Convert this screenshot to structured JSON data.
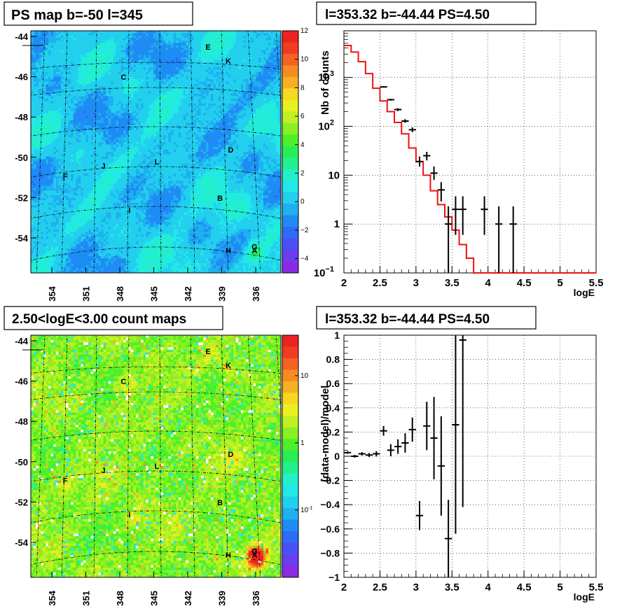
{
  "chart_data": [
    {
      "type": "heatmap",
      "title": "PS map b=-50 l=345",
      "y_ticks": [
        "-44",
        "-46",
        "-48",
        "-50",
        "-52",
        "-54"
      ],
      "x_ticks": [
        "354",
        "351",
        "348",
        "345",
        "342",
        "339",
        "336"
      ],
      "colorbar_ticks": [
        "12",
        "10",
        "8",
        "6",
        "4",
        "2",
        "0",
        "−2",
        "−4"
      ],
      "colorbar_range": [
        -5,
        12
      ],
      "sources": [
        {
          "name": "E",
          "l": 341.2,
          "b": -44.6
        },
        {
          "name": "K",
          "l": 339.5,
          "b": -45.3
        },
        {
          "name": "C",
          "l": 348.3,
          "b": -46.1
        },
        {
          "name": "D",
          "l": 339.3,
          "b": -49.7
        },
        {
          "name": "J",
          "l": 350.0,
          "b": -50.5
        },
        {
          "name": "L",
          "l": 345.5,
          "b": -50.3
        },
        {
          "name": "F",
          "l": 353.2,
          "b": -51.0
        },
        {
          "name": "B",
          "l": 340.2,
          "b": -52.1
        },
        {
          "name": "I",
          "l": 347.8,
          "b": -52.7
        },
        {
          "name": "G",
          "l": 337.3,
          "b": -54.5
        },
        {
          "name": "H",
          "l": 339.5,
          "b": -54.7
        },
        {
          "name": "A",
          "l": 337.3,
          "b": -54.7
        }
      ]
    },
    {
      "type": "line",
      "title": "l=353.32 b=-44.44 PS=4.50",
      "xlabel": "logE",
      "ylabel": "Nb of counts",
      "xlim": [
        2,
        5.5
      ],
      "ylim": [
        0.1,
        9000
      ],
      "yscale": "log",
      "grid": true,
      "x_ticks": [
        "2",
        "2.5",
        "3",
        "3.5",
        "4",
        "4.5",
        "5",
        "5.5"
      ],
      "y_ticks": [
        {
          "v": 0.1,
          "base": "10",
          "exp": "−1"
        },
        {
          "v": 1,
          "text": "1"
        },
        {
          "v": 10,
          "text": "10"
        },
        {
          "v": 100,
          "base": "10",
          "exp": "2"
        },
        {
          "v": 1000,
          "base": "10",
          "exp": "3"
        }
      ],
      "model": [
        4500,
        3300,
        2100,
        1200,
        600,
        330,
        200,
        120,
        70,
        36,
        19,
        10,
        4.8,
        2.5,
        1.4,
        0.75,
        0.38,
        0.2,
        0.1,
        0.05,
        0.03,
        0.02,
        0.01,
        0.01,
        0.01,
        0.01,
        0.01,
        0.01,
        0.01,
        0.01,
        0.01,
        0.01,
        0.01,
        0.01,
        0.01
      ],
      "data_points": [
        {
          "x": 2.55,
          "y": 640,
          "lo": 620,
          "hi": 660
        },
        {
          "x": 2.65,
          "y": 350,
          "lo": 335,
          "hi": 365
        },
        {
          "x": 2.75,
          "y": 220,
          "lo": 205,
          "hi": 235
        },
        {
          "x": 2.85,
          "y": 128,
          "lo": 118,
          "hi": 140
        },
        {
          "x": 2.95,
          "y": 85,
          "lo": 76,
          "hi": 95
        },
        {
          "x": 3.05,
          "y": 19,
          "lo": 15,
          "hi": 24
        },
        {
          "x": 3.15,
          "y": 25,
          "lo": 20,
          "hi": 30
        },
        {
          "x": 3.25,
          "y": 11,
          "lo": 8,
          "hi": 15
        },
        {
          "x": 3.35,
          "y": 5,
          "lo": 2.9,
          "hi": 7.2
        },
        {
          "x": 3.45,
          "y": 1,
          "lo": 0.1,
          "hi": 2.3
        },
        {
          "x": 3.55,
          "y": 2,
          "lo": 0.6,
          "hi": 3.7
        },
        {
          "x": 3.65,
          "y": 2,
          "lo": 0.6,
          "hi": 3.7
        },
        {
          "x": 3.95,
          "y": 2,
          "lo": 0.6,
          "hi": 3.7
        },
        {
          "x": 4.15,
          "y": 1,
          "lo": 0.1,
          "hi": 2.3
        },
        {
          "x": 4.35,
          "y": 1,
          "lo": 0.1,
          "hi": 2.3
        }
      ]
    },
    {
      "type": "heatmap",
      "title": "2.50<logE<3.00 count maps",
      "y_ticks": [
        "-44",
        "-46",
        "-48",
        "-50",
        "-52",
        "-54"
      ],
      "x_ticks": [
        "354",
        "351",
        "348",
        "345",
        "342",
        "339",
        "336"
      ],
      "colorbar_ticks": [
        {
          "text": "10",
          "v": 10
        },
        {
          "text": "1",
          "v": 1
        },
        {
          "base": "10",
          "exp": "-1",
          "v": 0.1
        }
      ],
      "colorbar_scale": "log",
      "colorbar_range": [
        0.01,
        40
      ],
      "sources": [
        {
          "name": "E",
          "l": 341.2,
          "b": -44.6
        },
        {
          "name": "K",
          "l": 339.5,
          "b": -45.3
        },
        {
          "name": "C",
          "l": 348.3,
          "b": -46.1
        },
        {
          "name": "D",
          "l": 339.3,
          "b": -49.7
        },
        {
          "name": "J",
          "l": 350.0,
          "b": -50.5
        },
        {
          "name": "L",
          "l": 345.5,
          "b": -50.3
        },
        {
          "name": "F",
          "l": 353.2,
          "b": -51.0
        },
        {
          "name": "B",
          "l": 340.2,
          "b": -52.1
        },
        {
          "name": "I",
          "l": 347.8,
          "b": -52.7
        },
        {
          "name": "G",
          "l": 337.3,
          "b": -54.5
        },
        {
          "name": "H",
          "l": 339.5,
          "b": -54.7
        },
        {
          "name": "A",
          "l": 337.3,
          "b": -54.7
        }
      ]
    },
    {
      "type": "scatter",
      "title": "l=353.32 b=-44.44 PS=4.50",
      "xlabel": "logE",
      "ylabel": "(data-model)/model",
      "xlim": [
        2,
        5.5
      ],
      "ylim": [
        -1,
        1
      ],
      "grid": true,
      "x_ticks": [
        "2",
        "2.5",
        "3",
        "3.5",
        "4",
        "4.5",
        "5",
        "5.5"
      ],
      "y_ticks": [
        "1",
        "0.8",
        "0.6",
        "0.4",
        "0.2",
        "0",
        "−0.2",
        "−0.4",
        "−0.6",
        "−0.8",
        "−1"
      ],
      "points": [
        {
          "x": 2.05,
          "y": 0.03,
          "err": 0.01
        },
        {
          "x": 2.15,
          "y": 0.0,
          "err": 0.012
        },
        {
          "x": 2.25,
          "y": 0.02,
          "err": 0.014
        },
        {
          "x": 2.35,
          "y": 0.01,
          "err": 0.017
        },
        {
          "x": 2.45,
          "y": 0.02,
          "err": 0.022
        },
        {
          "x": 2.55,
          "y": 0.21,
          "err": 0.04
        },
        {
          "x": 2.65,
          "y": 0.05,
          "err": 0.05
        },
        {
          "x": 2.75,
          "y": 0.08,
          "err": 0.06
        },
        {
          "x": 2.85,
          "y": 0.11,
          "err": 0.08
        },
        {
          "x": 2.95,
          "y": 0.22,
          "err": 0.1
        },
        {
          "x": 3.05,
          "y": -0.49,
          "err": 0.12
        },
        {
          "x": 3.15,
          "y": 0.25,
          "err": 0.2
        },
        {
          "x": 3.25,
          "y": 0.15,
          "err": 0.34
        },
        {
          "x": 3.35,
          "y": -0.08,
          "err": 0.41
        },
        {
          "x": 3.45,
          "y": -0.68,
          "err": 0.32
        },
        {
          "x": 3.55,
          "y": 0.26,
          "err": 0.9
        },
        {
          "x": 3.65,
          "y": 0.96,
          "err": 1.38
        }
      ]
    }
  ]
}
